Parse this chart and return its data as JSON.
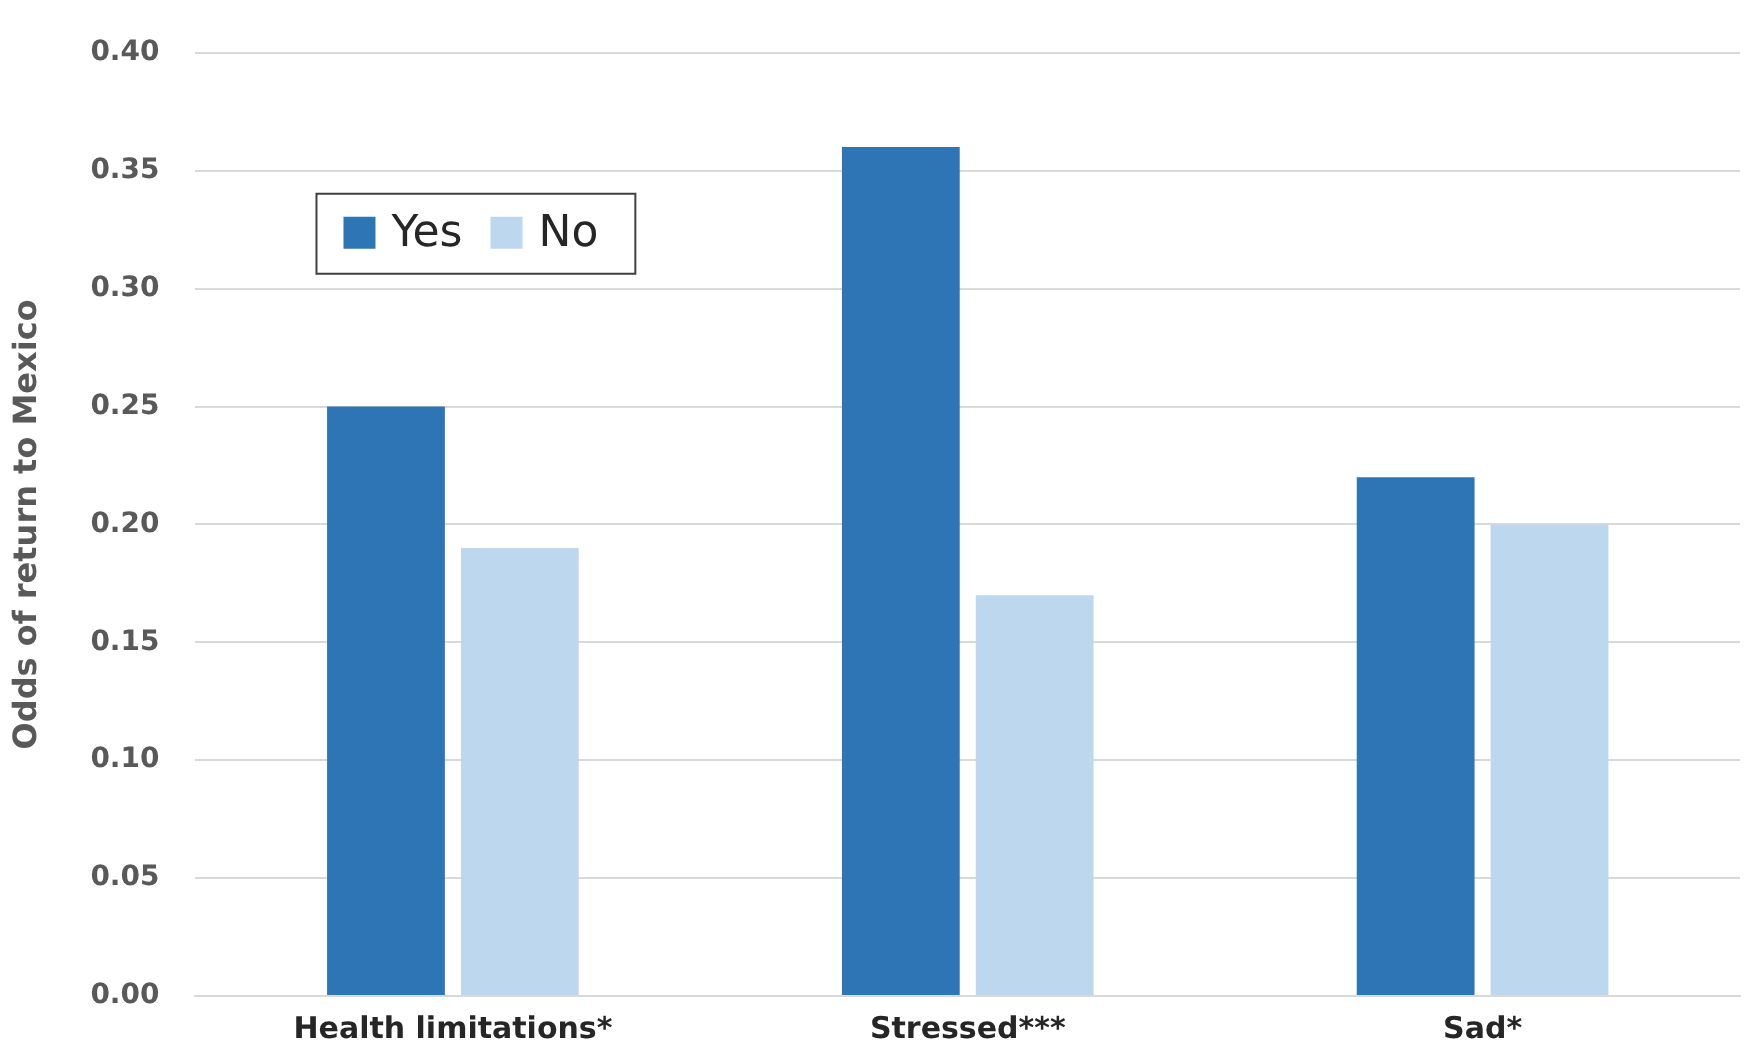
{
  "chart_data": {
    "type": "bar",
    "ylabel": "Odds of return to Mexico",
    "categories": [
      "Health limitations*",
      "Stressed***",
      "Sad*"
    ],
    "series": [
      {
        "name": "Yes",
        "color": "#2e75b6",
        "values": [
          0.25,
          0.36,
          0.22
        ]
      },
      {
        "name": "No",
        "color": "#bdd7ee",
        "values": [
          0.19,
          0.17,
          0.2
        ]
      }
    ],
    "ylim": [
      0,
      0.4
    ],
    "yticks": [
      {
        "value": 0,
        "label": "0.00"
      },
      {
        "value": 0.05,
        "label": "0.05"
      },
      {
        "value": 0.1,
        "label": "0.10"
      },
      {
        "value": 0.15,
        "label": "0.15"
      },
      {
        "value": 0.2,
        "label": "0.20"
      },
      {
        "value": 0.25,
        "label": "0.25"
      },
      {
        "value": 0.3,
        "label": "0.30"
      },
      {
        "value": 0.35,
        "label": "0.35"
      },
      {
        "value": 0.4,
        "label": "0.40"
      }
    ],
    "grid": "y",
    "legend": "top left"
  }
}
